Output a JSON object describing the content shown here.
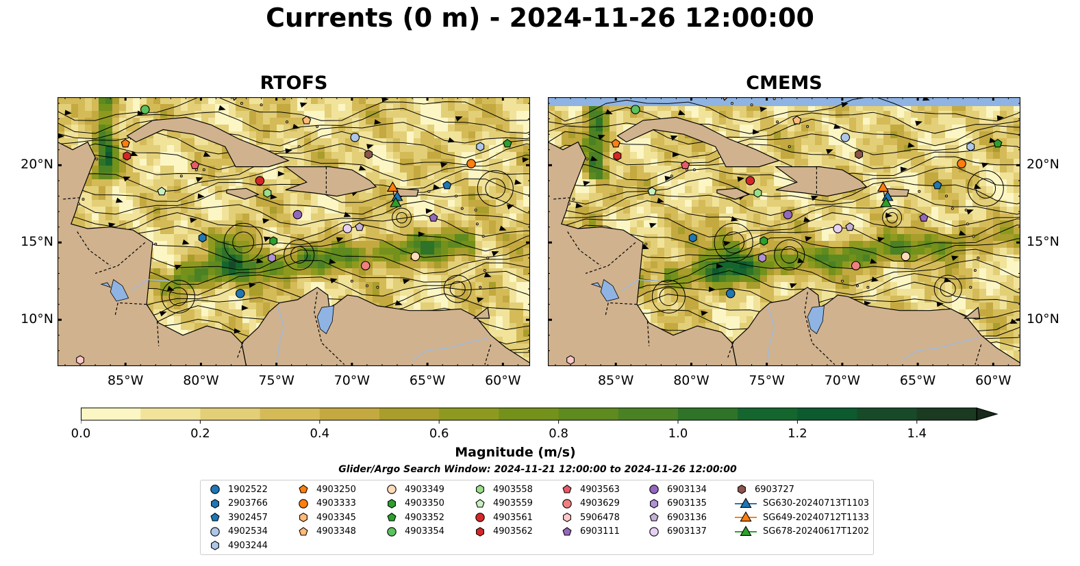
{
  "title": "Currents (0 m) - 2024-11-26 12:00:00",
  "panels": [
    {
      "title": "RTOFS"
    },
    {
      "title": "CMEMS"
    }
  ],
  "axes": {
    "lat_ticks": [
      "20°N",
      "15°N",
      "10°N"
    ],
    "lat_values": [
      20,
      15,
      10
    ],
    "lon_ticks": [
      "85°W",
      "80°W",
      "75°W",
      "70°W",
      "65°W",
      "60°W"
    ],
    "lon_values": [
      -85,
      -80,
      -75,
      -70,
      -65,
      -60
    ],
    "lon_range": [
      -89.5,
      -58.2
    ],
    "lat_range": [
      7.0,
      24.4
    ]
  },
  "colorbar": {
    "label": "Magnitude (m/s)",
    "ticks": [
      "0.0",
      "0.2",
      "0.4",
      "0.6",
      "0.8",
      "1.0",
      "1.2",
      "1.4"
    ],
    "tick_values": [
      0.0,
      0.2,
      0.4,
      0.6,
      0.8,
      1.0,
      1.2,
      1.4
    ],
    "range": [
      0.0,
      1.5
    ],
    "extend": "max",
    "colors": [
      "#fbf6c4",
      "#f1e39a",
      "#e3cf77",
      "#d4bb58",
      "#c3a940",
      "#a99d2b",
      "#8e9a1f",
      "#74911b",
      "#5f8a1f",
      "#4a8124",
      "#2e7327",
      "#15652e",
      "#0d5a2e",
      "#174a28",
      "#1a3a22",
      "#182a1a"
    ]
  },
  "search_window": "Glider/Argo Search Window: 2024-11-21 12:00:00 to 2024-11-26 12:00:00",
  "colors": {
    "land": "#d0b28e",
    "lake": "#8fb4e3",
    "river": "#9dbbe0"
  },
  "legend": {
    "entries": [
      {
        "label": "1902522",
        "marker": "circle",
        "color": "#1f77b4"
      },
      {
        "label": "2903766",
        "marker": "hexagon",
        "color": "#1f77b4"
      },
      {
        "label": "3902457",
        "marker": "pentagon",
        "color": "#1f77b4"
      },
      {
        "label": "4902534",
        "marker": "circle",
        "color": "#aec7e8"
      },
      {
        "label": "4903244",
        "marker": "hexagon",
        "color": "#aec7e8"
      },
      {
        "label": "4903250",
        "marker": "pentagon",
        "color": "#ff7f0e"
      },
      {
        "label": "4903333",
        "marker": "circle",
        "color": "#ff7f0e"
      },
      {
        "label": "4903345",
        "marker": "hexagon",
        "color": "#ffbb78"
      },
      {
        "label": "4903348",
        "marker": "pentagon",
        "color": "#ffbb78"
      },
      {
        "label": "4903349",
        "marker": "circle",
        "color": "#ffdcb8"
      },
      {
        "label": "4903350",
        "marker": "hexagon",
        "color": "#2ca02c"
      },
      {
        "label": "4903352",
        "marker": "pentagon",
        "color": "#2ca02c"
      },
      {
        "label": "4903354",
        "marker": "circle",
        "color": "#5dc15d"
      },
      {
        "label": "4903558",
        "marker": "hexagon",
        "color": "#98df8a"
      },
      {
        "label": "4903559",
        "marker": "pentagon",
        "color": "#c8f0c0"
      },
      {
        "label": "4903561",
        "marker": "circle",
        "color": "#d62728"
      },
      {
        "label": "4903562",
        "marker": "hexagon",
        "color": "#d62728"
      },
      {
        "label": "4903563",
        "marker": "pentagon",
        "color": "#e85a6a"
      },
      {
        "label": "4903629",
        "marker": "circle",
        "color": "#f08080"
      },
      {
        "label": "5906478",
        "marker": "hexagon",
        "color": "#ffc7c7"
      },
      {
        "label": "6903111",
        "marker": "pentagon",
        "color": "#9467bd"
      },
      {
        "label": "6903134",
        "marker": "circle",
        "color": "#9467bd"
      },
      {
        "label": "6903135",
        "marker": "hexagon",
        "color": "#b091d6"
      },
      {
        "label": "6903136",
        "marker": "pentagon",
        "color": "#c5b0d5"
      },
      {
        "label": "6903137",
        "marker": "circle",
        "color": "#e8d0f5"
      },
      {
        "label": "6903727",
        "marker": "hexagon",
        "color": "#8c564b"
      },
      {
        "label": "SG630-20240713T1103",
        "marker": "triangle",
        "color": "#1f77b4"
      },
      {
        "label": "SG649-20240712T1133",
        "marker": "triangle",
        "color": "#ff7f0e"
      },
      {
        "label": "SG678-20240617T1202",
        "marker": "triangle",
        "color": "#2ca02c"
      }
    ]
  },
  "markers": [
    {
      "id": "4903250",
      "lon": -85.0,
      "lat": 21.4
    },
    {
      "id": "4903562",
      "lon": -84.9,
      "lat": 20.6
    },
    {
      "id": "4903563",
      "lon": -80.4,
      "lat": 20.0
    },
    {
      "id": "4903559",
      "lon": -82.6,
      "lat": 18.3
    },
    {
      "id": "4903354",
      "lon": -83.7,
      "lat": 23.6
    },
    {
      "id": "4903561",
      "lon": -76.1,
      "lat": 19.0
    },
    {
      "id": "4903558",
      "lon": -75.6,
      "lat": 18.2
    },
    {
      "id": "4903348",
      "lon": -73.0,
      "lat": 22.9
    },
    {
      "id": "4902534",
      "lon": -69.8,
      "lat": 21.8
    },
    {
      "id": "6903727",
      "lon": -68.9,
      "lat": 20.7
    },
    {
      "id": "4903333",
      "lon": -62.1,
      "lat": 20.1
    },
    {
      "id": "4903244",
      "lon": -61.5,
      "lat": 21.2
    },
    {
      "id": "4903352",
      "lon": -59.7,
      "lat": 21.4
    },
    {
      "id": "3902457",
      "lon": -63.7,
      "lat": 18.7
    },
    {
      "id": "6903111",
      "lon": -64.6,
      "lat": 16.6
    },
    {
      "id": "6903134",
      "lon": -73.6,
      "lat": 16.8
    },
    {
      "id": "4903350",
      "lon": -75.2,
      "lat": 15.1
    },
    {
      "id": "6903135",
      "lon": -75.3,
      "lat": 14.0
    },
    {
      "id": "6903137",
      "lon": -70.3,
      "lat": 15.9
    },
    {
      "id": "6903136",
      "lon": -69.5,
      "lat": 16.0
    },
    {
      "id": "4903629",
      "lon": -69.1,
      "lat": 13.5
    },
    {
      "id": "4903349",
      "lon": -65.8,
      "lat": 14.1
    },
    {
      "id": "2903766",
      "lon": -79.9,
      "lat": 15.3
    },
    {
      "id": "1902522",
      "lon": -77.4,
      "lat": 11.7
    },
    {
      "id": "5906478",
      "lon": -88.0,
      "lat": 7.4
    },
    {
      "id": "SG649-20240712T1133",
      "lon": -67.3,
      "lat": 18.6
    },
    {
      "id": "SG630-20240713T1103",
      "lon": -67.0,
      "lat": 18.0
    },
    {
      "id": "SG678-20240617T1202",
      "lon": -67.1,
      "lat": 17.6
    }
  ]
}
